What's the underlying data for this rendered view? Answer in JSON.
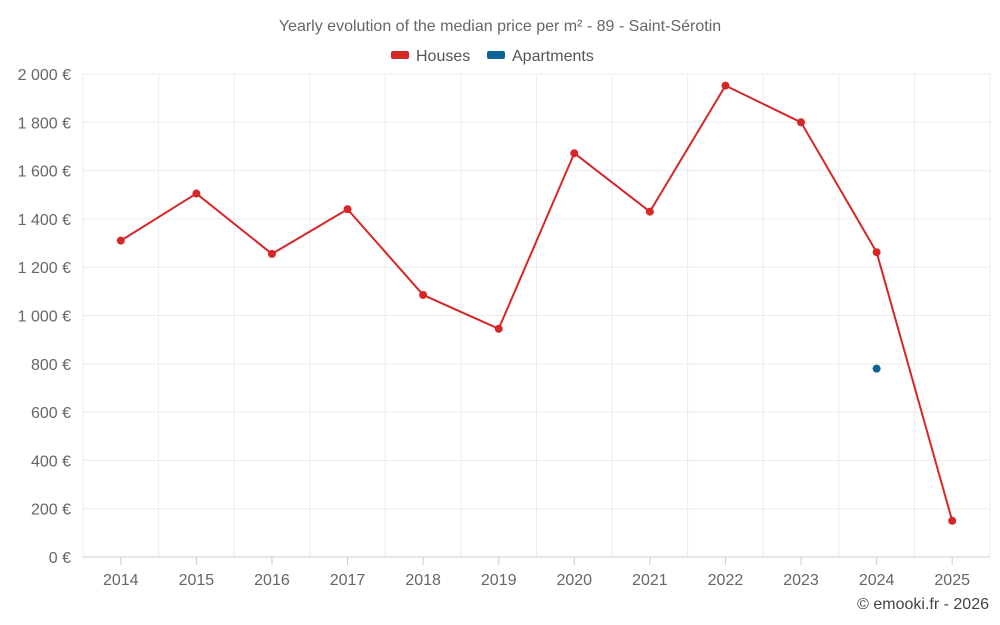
{
  "chart_data": {
    "type": "line",
    "title": "Yearly evolution of the median price per m² - 89 - Saint-Sérotin",
    "categories": [
      "2014",
      "2015",
      "2016",
      "2017",
      "2018",
      "2019",
      "2020",
      "2021",
      "2022",
      "2023",
      "2024",
      "2025"
    ],
    "series": [
      {
        "name": "Houses",
        "color": "#d62728",
        "values": [
          1310,
          1505,
          1255,
          1440,
          1085,
          945,
          1672,
          1430,
          1952,
          1800,
          1262,
          150
        ]
      },
      {
        "name": "Apartments",
        "color": "#0b6496",
        "values": [
          null,
          null,
          null,
          null,
          null,
          null,
          null,
          null,
          null,
          null,
          780,
          null
        ]
      }
    ],
    "y_ticks": [
      "0 €",
      "200 €",
      "400 €",
      "600 €",
      "800 €",
      "1 000 €",
      "1 200 €",
      "1 400 €",
      "1 600 €",
      "1 800 €",
      "2 000 €"
    ],
    "ylim": [
      0,
      2000
    ],
    "ystep": 200,
    "xlabel": "",
    "ylabel": "",
    "legend_position": "top-center",
    "grid": true
  },
  "credit": "© emooki.fr - 2026"
}
